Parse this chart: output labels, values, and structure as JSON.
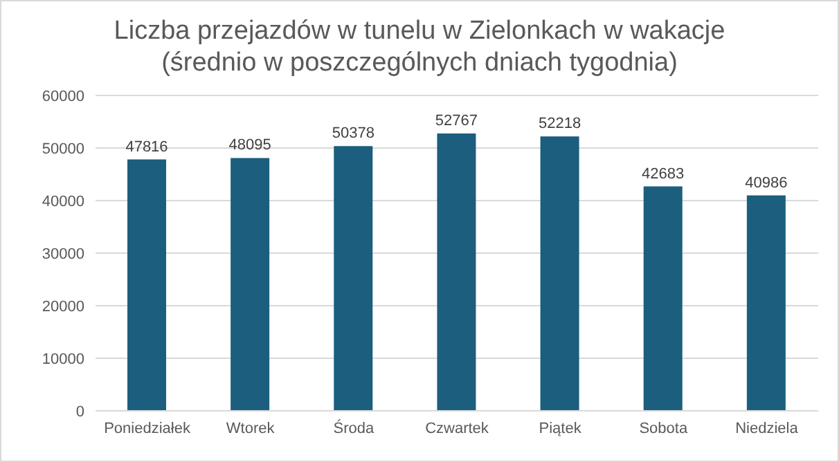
{
  "chart_data": {
    "type": "bar",
    "title": "Liczba przejazdów w tunelu w Zielonkach w wakacje (średnio w poszczególnych dniach tygodnia)",
    "categories": [
      "Poniedziałek",
      "Wtorek",
      "Środa",
      "Czwartek",
      "Piątek",
      "Sobota",
      "Niedziela"
    ],
    "values": [
      47816,
      48095,
      50378,
      52767,
      52218,
      42683,
      40986
    ],
    "color": "#1b5e7e",
    "ylim": [
      0,
      60000
    ],
    "yticks": [
      0,
      10000,
      20000,
      30000,
      40000,
      50000,
      60000
    ],
    "grid": "y",
    "data_labels": true,
    "legend": false
  }
}
